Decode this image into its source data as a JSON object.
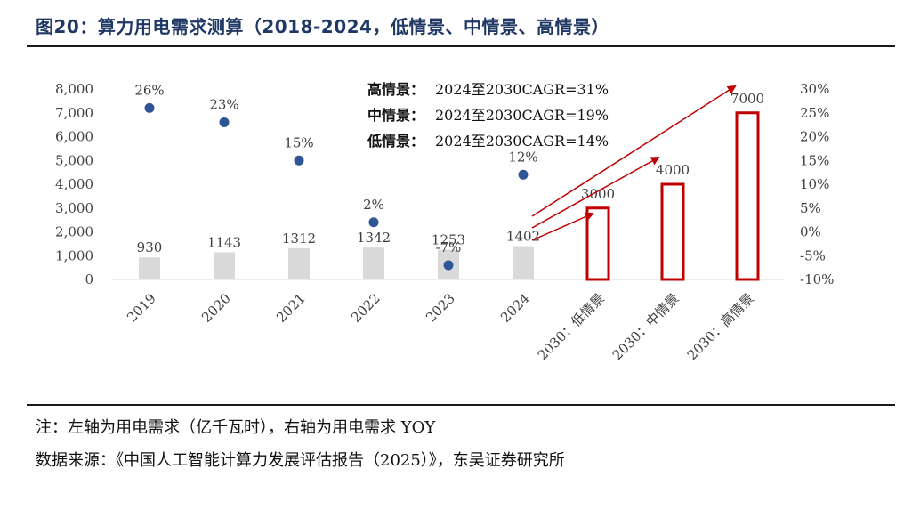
{
  "header": {
    "title": "图20：算力用电需求测算（2018-2024，低情景、中情景、高情景）"
  },
  "notes": {
    "note": "注：左轴为用电需求（亿千瓦时），右轴为用电需求 YOY",
    "source": "数据来源：《中国人工智能计算力发展评估报告（2025）》，东吴证券研究所"
  },
  "colors": {
    "title": "#1f3864",
    "hist_bar": "#d9d9d9",
    "scenario_bar": "#c00000",
    "yoy_dot": "#2f5597",
    "arrow": "#c00000"
  },
  "chart_data": {
    "type": "bar",
    "categories": [
      "2019",
      "2020",
      "2021",
      "2022",
      "2023",
      "2024",
      "2030：低情景",
      "2030：中情景",
      "2030：高情景"
    ],
    "series": [
      {
        "values": [
          930,
          1143,
          1312,
          1342,
          1253,
          1402,
          null,
          null,
          null
        ]
      },
      {
        "values": [
          null,
          null,
          null,
          null,
          null,
          null,
          3000,
          4000,
          7000
        ]
      },
      {
        "values": [
          26,
          23,
          15,
          2,
          -7,
          12,
          null,
          null,
          null
        ]
      }
    ],
    "data_labels_bars": [
      "930",
      "1143",
      "1312",
      "1342",
      "1253",
      "1402",
      "3000",
      "4000",
      "7000"
    ],
    "data_labels_yoy": [
      "26%",
      "23%",
      "15%",
      "2%",
      "-7%",
      "12%"
    ],
    "y_left": {
      "min": 0,
      "max": 8000,
      "step": 1000,
      "tick_labels": [
        "0",
        "1,000",
        "2,000",
        "3,000",
        "4,000",
        "5,000",
        "6,000",
        "7,000",
        "8,000"
      ]
    },
    "y_right": {
      "min": -10,
      "max": 30,
      "step": 5,
      "tick_labels": [
        "-10%",
        "-5%",
        "0%",
        "5%",
        "10%",
        "15%",
        "20%",
        "25%",
        "30%"
      ]
    },
    "annotations": [
      {
        "label": "高情景：",
        "text": "2024至2030CAGR=31%"
      },
      {
        "label": "中情景：",
        "text": "2024至2030CAGR=19%"
      },
      {
        "label": "低情景：",
        "text": "2024至2030CAGR=14%"
      }
    ],
    "grid": false,
    "legend": "none"
  }
}
